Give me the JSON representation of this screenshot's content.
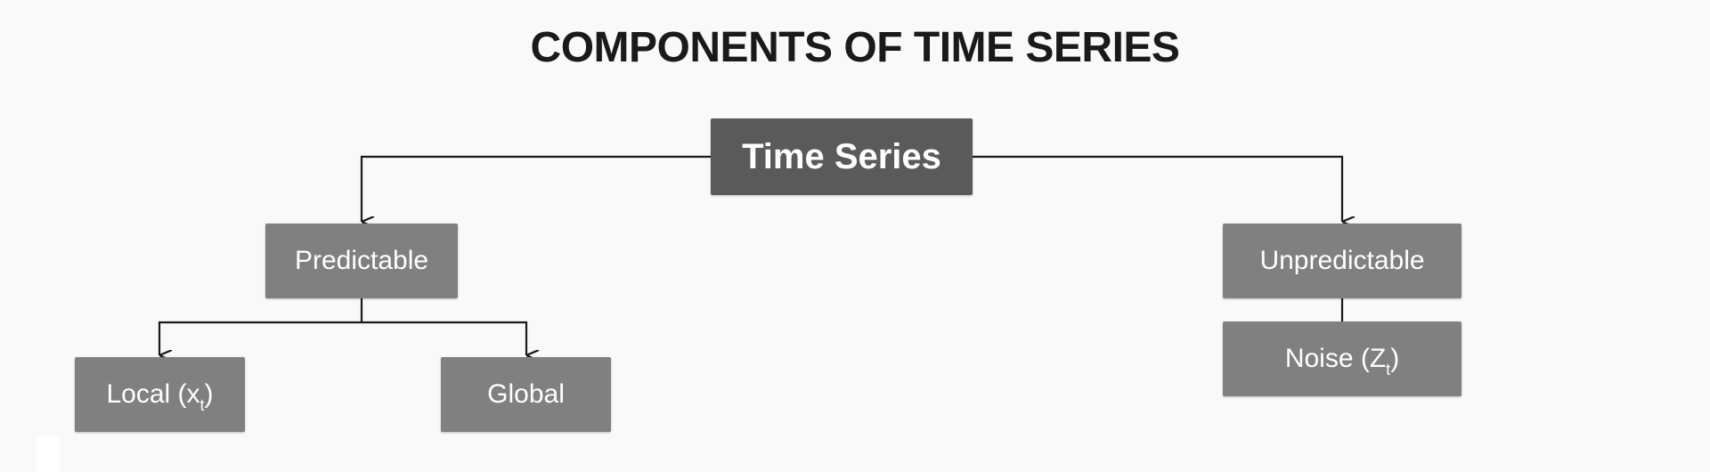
{
  "diagram": {
    "title": "COMPONENTS OF TIME SERIES",
    "root": {
      "label": "Time Series"
    },
    "predictable": {
      "label": "Predictable",
      "children": [
        {
          "label": "Local (x",
          "sub": "t",
          "suffix": ")"
        },
        {
          "label": "Global"
        }
      ]
    },
    "unpredictable": {
      "label": "Unpredictable",
      "children": [
        {
          "label": "Noise (Z",
          "sub": "t",
          "suffix": ")"
        }
      ]
    }
  },
  "colors": {
    "background": "#f9f9f9",
    "root_box": "#5a5a5a",
    "child_box": "#808080",
    "text": "#ffffff",
    "title": "#1a1a1a",
    "line": "#1a1a1a"
  }
}
